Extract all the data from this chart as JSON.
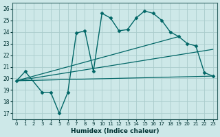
{
  "xlabel": "Humidex (Indice chaleur)",
  "bg_color": "#cde8e8",
  "grid_color": "#aacccc",
  "line_color": "#006666",
  "xlim": [
    -0.5,
    23.5
  ],
  "ylim": [
    16.5,
    26.5
  ],
  "yticks": [
    17,
    18,
    19,
    20,
    21,
    22,
    23,
    24,
    25,
    26
  ],
  "xticks": [
    0,
    1,
    2,
    3,
    4,
    5,
    6,
    7,
    8,
    9,
    10,
    11,
    12,
    13,
    14,
    15,
    16,
    17,
    18,
    19,
    20,
    21,
    22,
    23
  ],
  "series": [
    {
      "x": [
        0,
        1,
        3,
        4,
        5,
        6,
        7,
        8,
        9,
        10,
        11,
        12,
        13,
        14,
        15,
        16,
        17,
        18,
        19,
        20,
        21,
        22,
        23
      ],
      "y": [
        19.8,
        20.6,
        18.8,
        18.8,
        17.0,
        18.8,
        23.9,
        24.1,
        20.6,
        25.6,
        25.2,
        24.1,
        24.2,
        25.2,
        25.8,
        25.6,
        25.0,
        24.0,
        23.6,
        23.0,
        22.8,
        20.5,
        20.2
      ],
      "marker": "D",
      "markersize": 2.5,
      "linewidth": 1.0
    },
    {
      "x": [
        0,
        23
      ],
      "y": [
        19.8,
        20.2
      ],
      "marker": null,
      "markersize": 0,
      "linewidth": 0.9
    },
    {
      "x": [
        0,
        23
      ],
      "y": [
        19.8,
        22.5
      ],
      "marker": null,
      "markersize": 0,
      "linewidth": 0.9
    },
    {
      "x": [
        0,
        19
      ],
      "y": [
        19.8,
        23.6
      ],
      "marker": null,
      "markersize": 0,
      "linewidth": 0.9
    }
  ]
}
